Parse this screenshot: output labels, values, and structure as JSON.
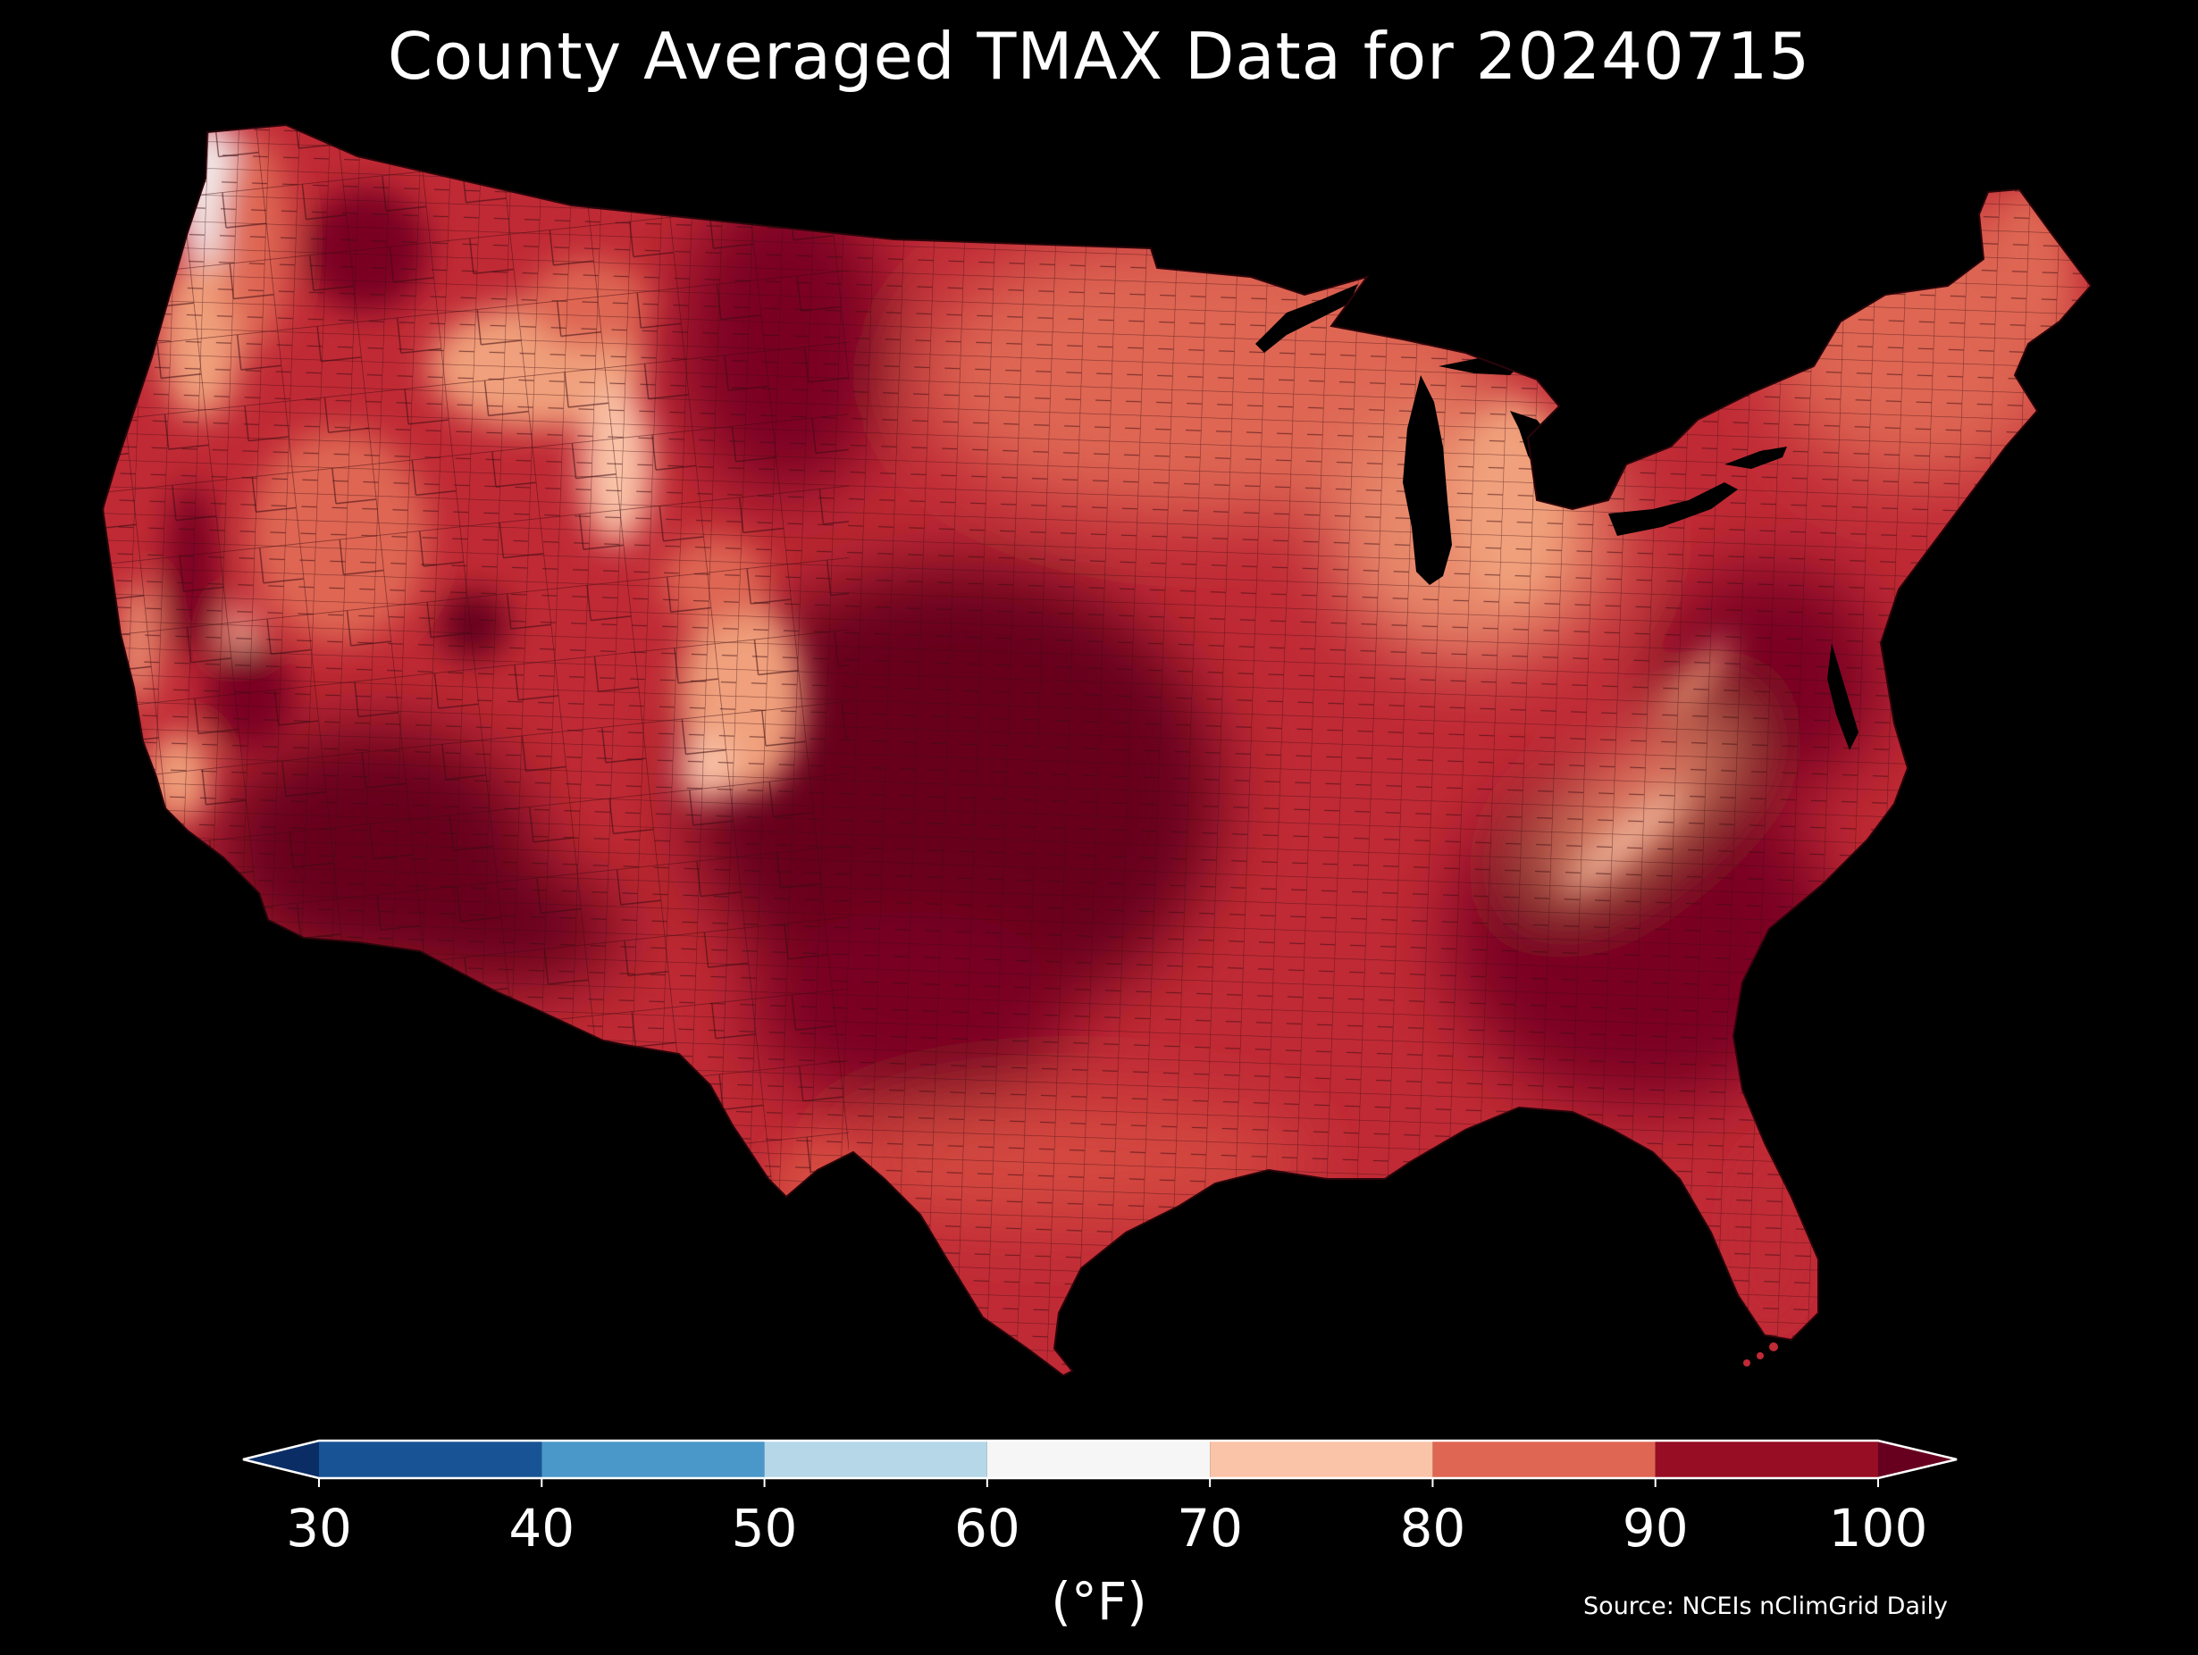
{
  "title": "County Averaged TMAX Data for 20240715",
  "colorbar": {
    "ticks": [
      "30",
      "40",
      "50",
      "60",
      "70",
      "80",
      "90",
      "100"
    ],
    "bins": [
      {
        "from": 30,
        "to": 40,
        "color": "#185495"
      },
      {
        "from": 40,
        "to": 50,
        "color": "#4a98c9"
      },
      {
        "from": 50,
        "to": 60,
        "color": "#b6d7e8"
      },
      {
        "from": 60,
        "to": 70,
        "color": "#f6f6f6"
      },
      {
        "from": 70,
        "to": 80,
        "color": "#fac4a8"
      },
      {
        "from": 80,
        "to": 90,
        "color": "#de6652"
      },
      {
        "from": 90,
        "to": 100,
        "color": "#970d24"
      }
    ],
    "under_color": "#0a2d66",
    "over_color": "#67001f",
    "units": "(°F)"
  },
  "source": "Source: NCEIs nClimGrid Daily",
  "map": {
    "extent": "Contiguous United States, county level",
    "colors": {
      "hottest": "#67001f",
      "hot": "#970d24",
      "warm": "#c02a35",
      "mild": "#de6652",
      "cool": "#f0a07c",
      "coolest": "#fac4a8",
      "coldest": "#f6f6f6",
      "border": "#3a0a10"
    }
  }
}
